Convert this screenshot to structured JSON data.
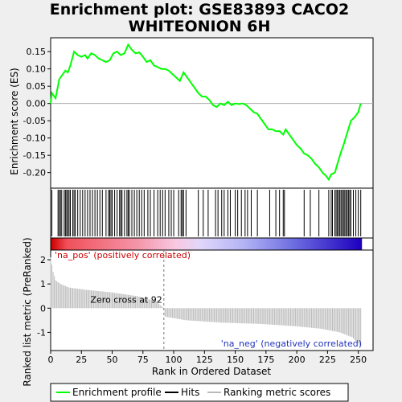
{
  "chart_data": {
    "type": "line",
    "title_line1": "Enrichment plot: GSE83893 CACO2",
    "title_line2": "WHITEONION 6H",
    "panels": {
      "enrichment": {
        "ylabel": "Enrichment score (ES)",
        "ylim": [
          -0.245,
          0.19
        ],
        "yticks": [
          -0.2,
          -0.15,
          -0.1,
          -0.05,
          0.0,
          0.05,
          0.1,
          0.15
        ],
        "ytick_labels": [
          "-0.20",
          "-0.15",
          "-0.10",
          "-0.05",
          "0.00",
          "0.05",
          "0.10",
          "0.15"
        ],
        "line_color": "#00ff00",
        "es_profile": [
          [
            0,
            0.0
          ],
          [
            1,
            0.03
          ],
          [
            4,
            0.015
          ],
          [
            7,
            0.07
          ],
          [
            10,
            0.085
          ],
          [
            12,
            0.095
          ],
          [
            14,
            0.09
          ],
          [
            16,
            0.11
          ],
          [
            19,
            0.15
          ],
          [
            22,
            0.14
          ],
          [
            25,
            0.135
          ],
          [
            28,
            0.14
          ],
          [
            30,
            0.13
          ],
          [
            33,
            0.145
          ],
          [
            36,
            0.14
          ],
          [
            39,
            0.13
          ],
          [
            42,
            0.125
          ],
          [
            45,
            0.12
          ],
          [
            48,
            0.125
          ],
          [
            51,
            0.145
          ],
          [
            54,
            0.15
          ],
          [
            57,
            0.14
          ],
          [
            60,
            0.145
          ],
          [
            63,
            0.17
          ],
          [
            66,
            0.155
          ],
          [
            69,
            0.145
          ],
          [
            72,
            0.148
          ],
          [
            75,
            0.135
          ],
          [
            78,
            0.12
          ],
          [
            81,
            0.125
          ],
          [
            84,
            0.11
          ],
          [
            87,
            0.105
          ],
          [
            90,
            0.1
          ],
          [
            93,
            0.1
          ],
          [
            96,
            0.095
          ],
          [
            99,
            0.085
          ],
          [
            102,
            0.075
          ],
          [
            105,
            0.065
          ],
          [
            108,
            0.09
          ],
          [
            111,
            0.075
          ],
          [
            114,
            0.06
          ],
          [
            117,
            0.045
          ],
          [
            120,
            0.03
          ],
          [
            123,
            0.02
          ],
          [
            126,
            0.02
          ],
          [
            129,
            0.01
          ],
          [
            132,
            -0.005
          ],
          [
            135,
            -0.01
          ],
          [
            138,
            0.0
          ],
          [
            141,
            -0.005
          ],
          [
            144,
            0.005
          ],
          [
            147,
            -0.005
          ],
          [
            150,
            0.0
          ],
          [
            153,
            -0.002
          ],
          [
            156,
            0.0
          ],
          [
            159,
            -0.005
          ],
          [
            162,
            -0.015
          ],
          [
            165,
            -0.025
          ],
          [
            168,
            -0.03
          ],
          [
            171,
            -0.045
          ],
          [
            174,
            -0.06
          ],
          [
            177,
            -0.075
          ],
          [
            180,
            -0.075
          ],
          [
            183,
            -0.08
          ],
          [
            186,
            -0.08
          ],
          [
            189,
            -0.09
          ],
          [
            191,
            -0.075
          ],
          [
            194,
            -0.09
          ],
          [
            197,
            -0.105
          ],
          [
            200,
            -0.12
          ],
          [
            203,
            -0.13
          ],
          [
            206,
            -0.145
          ],
          [
            209,
            -0.15
          ],
          [
            212,
            -0.16
          ],
          [
            215,
            -0.175
          ],
          [
            218,
            -0.185
          ],
          [
            221,
            -0.2
          ],
          [
            224,
            -0.21
          ],
          [
            226,
            -0.22
          ],
          [
            228,
            -0.205
          ],
          [
            231,
            -0.2
          ],
          [
            233,
            -0.175
          ],
          [
            236,
            -0.14
          ],
          [
            238,
            -0.12
          ],
          [
            241,
            -0.085
          ],
          [
            244,
            -0.05
          ],
          [
            247,
            -0.04
          ],
          [
            250,
            -0.025
          ],
          [
            252,
            0.0
          ]
        ]
      },
      "hits": {
        "positions": [
          1,
          6,
          7,
          8,
          9,
          11,
          12,
          13,
          14,
          15,
          16,
          18,
          19,
          20,
          22,
          24,
          26,
          28,
          30,
          32,
          34,
          36,
          38,
          40,
          42,
          45,
          47,
          48,
          49,
          50,
          52,
          54,
          56,
          57,
          58,
          60,
          62,
          63,
          64,
          66,
          68,
          70,
          72,
          74,
          76,
          79,
          81,
          84,
          87,
          89,
          91,
          93,
          96,
          98,
          100,
          104,
          106,
          107,
          108,
          110,
          120,
          124,
          128,
          134,
          136,
          139,
          141,
          144,
          146,
          150,
          152,
          155,
          158,
          160,
          163,
          168,
          178,
          183,
          186,
          189,
          190,
          206,
          211,
          218,
          226,
          228,
          229,
          231,
          232,
          233,
          234,
          235,
          236,
          237,
          238,
          239,
          240,
          241,
          242,
          243,
          244,
          246,
          248,
          250,
          252
        ]
      },
      "gradient": {
        "label_pos": "'na_pos' (positively correlated)",
        "label_neg": "'na_neg' (negatively correlated)",
        "pos_label_color": "#cc0000",
        "neg_label_color": "#2233bb"
      },
      "ranked": {
        "ylabel": "Ranked list metric (PreRanked)",
        "ylim": [
          -1.75,
          2.4
        ],
        "yticks": [
          -1,
          0,
          1,
          2
        ],
        "ytick_labels": [
          "-1",
          "0",
          "1",
          "2"
        ],
        "zero_cross_label": "Zero cross at 92",
        "zero_cross_rank": 92,
        "metric_points": [
          [
            0,
            2.1
          ],
          [
            1,
            1.8
          ],
          [
            2,
            1.5
          ],
          [
            4,
            1.15
          ],
          [
            8,
            1.0
          ],
          [
            15,
            0.85
          ],
          [
            30,
            0.75
          ],
          [
            50,
            0.65
          ],
          [
            70,
            0.5
          ],
          [
            85,
            0.3
          ],
          [
            92,
            0.0
          ],
          [
            93,
            -0.35
          ],
          [
            110,
            -0.5
          ],
          [
            140,
            -0.6
          ],
          [
            170,
            -0.65
          ],
          [
            200,
            -0.75
          ],
          [
            220,
            -0.85
          ],
          [
            235,
            -1.0
          ],
          [
            245,
            -1.2
          ],
          [
            250,
            -1.45
          ],
          [
            252,
            -1.6
          ]
        ]
      }
    },
    "xaxis": {
      "label": "Rank in Ordered Dataset",
      "xlim": [
        0,
        262
      ],
      "ticks": [
        0,
        25,
        50,
        75,
        100,
        125,
        150,
        175,
        200,
        225,
        250
      ],
      "tick_labels": [
        "0",
        "25",
        "50",
        "75",
        "100",
        "125",
        "150",
        "175",
        "200",
        "225",
        "250"
      ]
    },
    "legend": {
      "placement": "bottom",
      "items": [
        {
          "label": "Enrichment profile",
          "color": "#00ff00"
        },
        {
          "label": "Hits",
          "color": "#000000"
        },
        {
          "label": "Ranking metric scores",
          "color": "#bbbbbb"
        }
      ]
    }
  }
}
